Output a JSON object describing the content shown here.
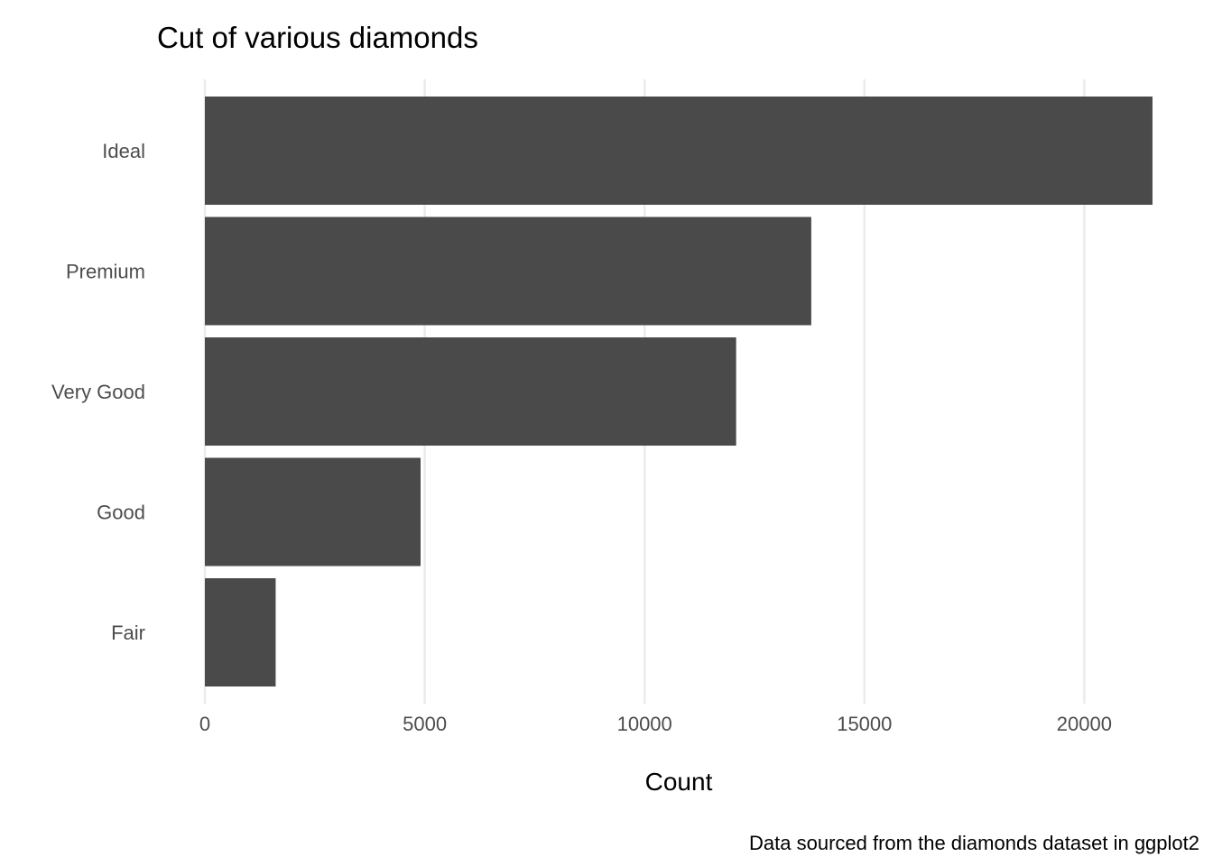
{
  "chart_data": {
    "type": "bar",
    "orientation": "horizontal",
    "title": "Cut of various diamonds",
    "caption": "Data sourced from the diamonds dataset in ggplot2",
    "xlabel": "Count",
    "ylabel": "",
    "categories": [
      "Ideal",
      "Premium",
      "Very Good",
      "Good",
      "Fair"
    ],
    "values": [
      21551,
      13791,
      12082,
      4906,
      1610
    ],
    "xlim": [
      0,
      21551
    ],
    "x_ticks": [
      0,
      5000,
      10000,
      15000,
      20000
    ],
    "x_tick_labels": [
      "0",
      "5000",
      "10000",
      "15000",
      "20000"
    ],
    "grid": "vertical major",
    "legend": "none",
    "colors": {
      "bar": "#4a4a4a",
      "grid": "#ebebeb",
      "tick_text": "#4d4d4d",
      "text": "#000000",
      "background": "#ffffff"
    }
  }
}
